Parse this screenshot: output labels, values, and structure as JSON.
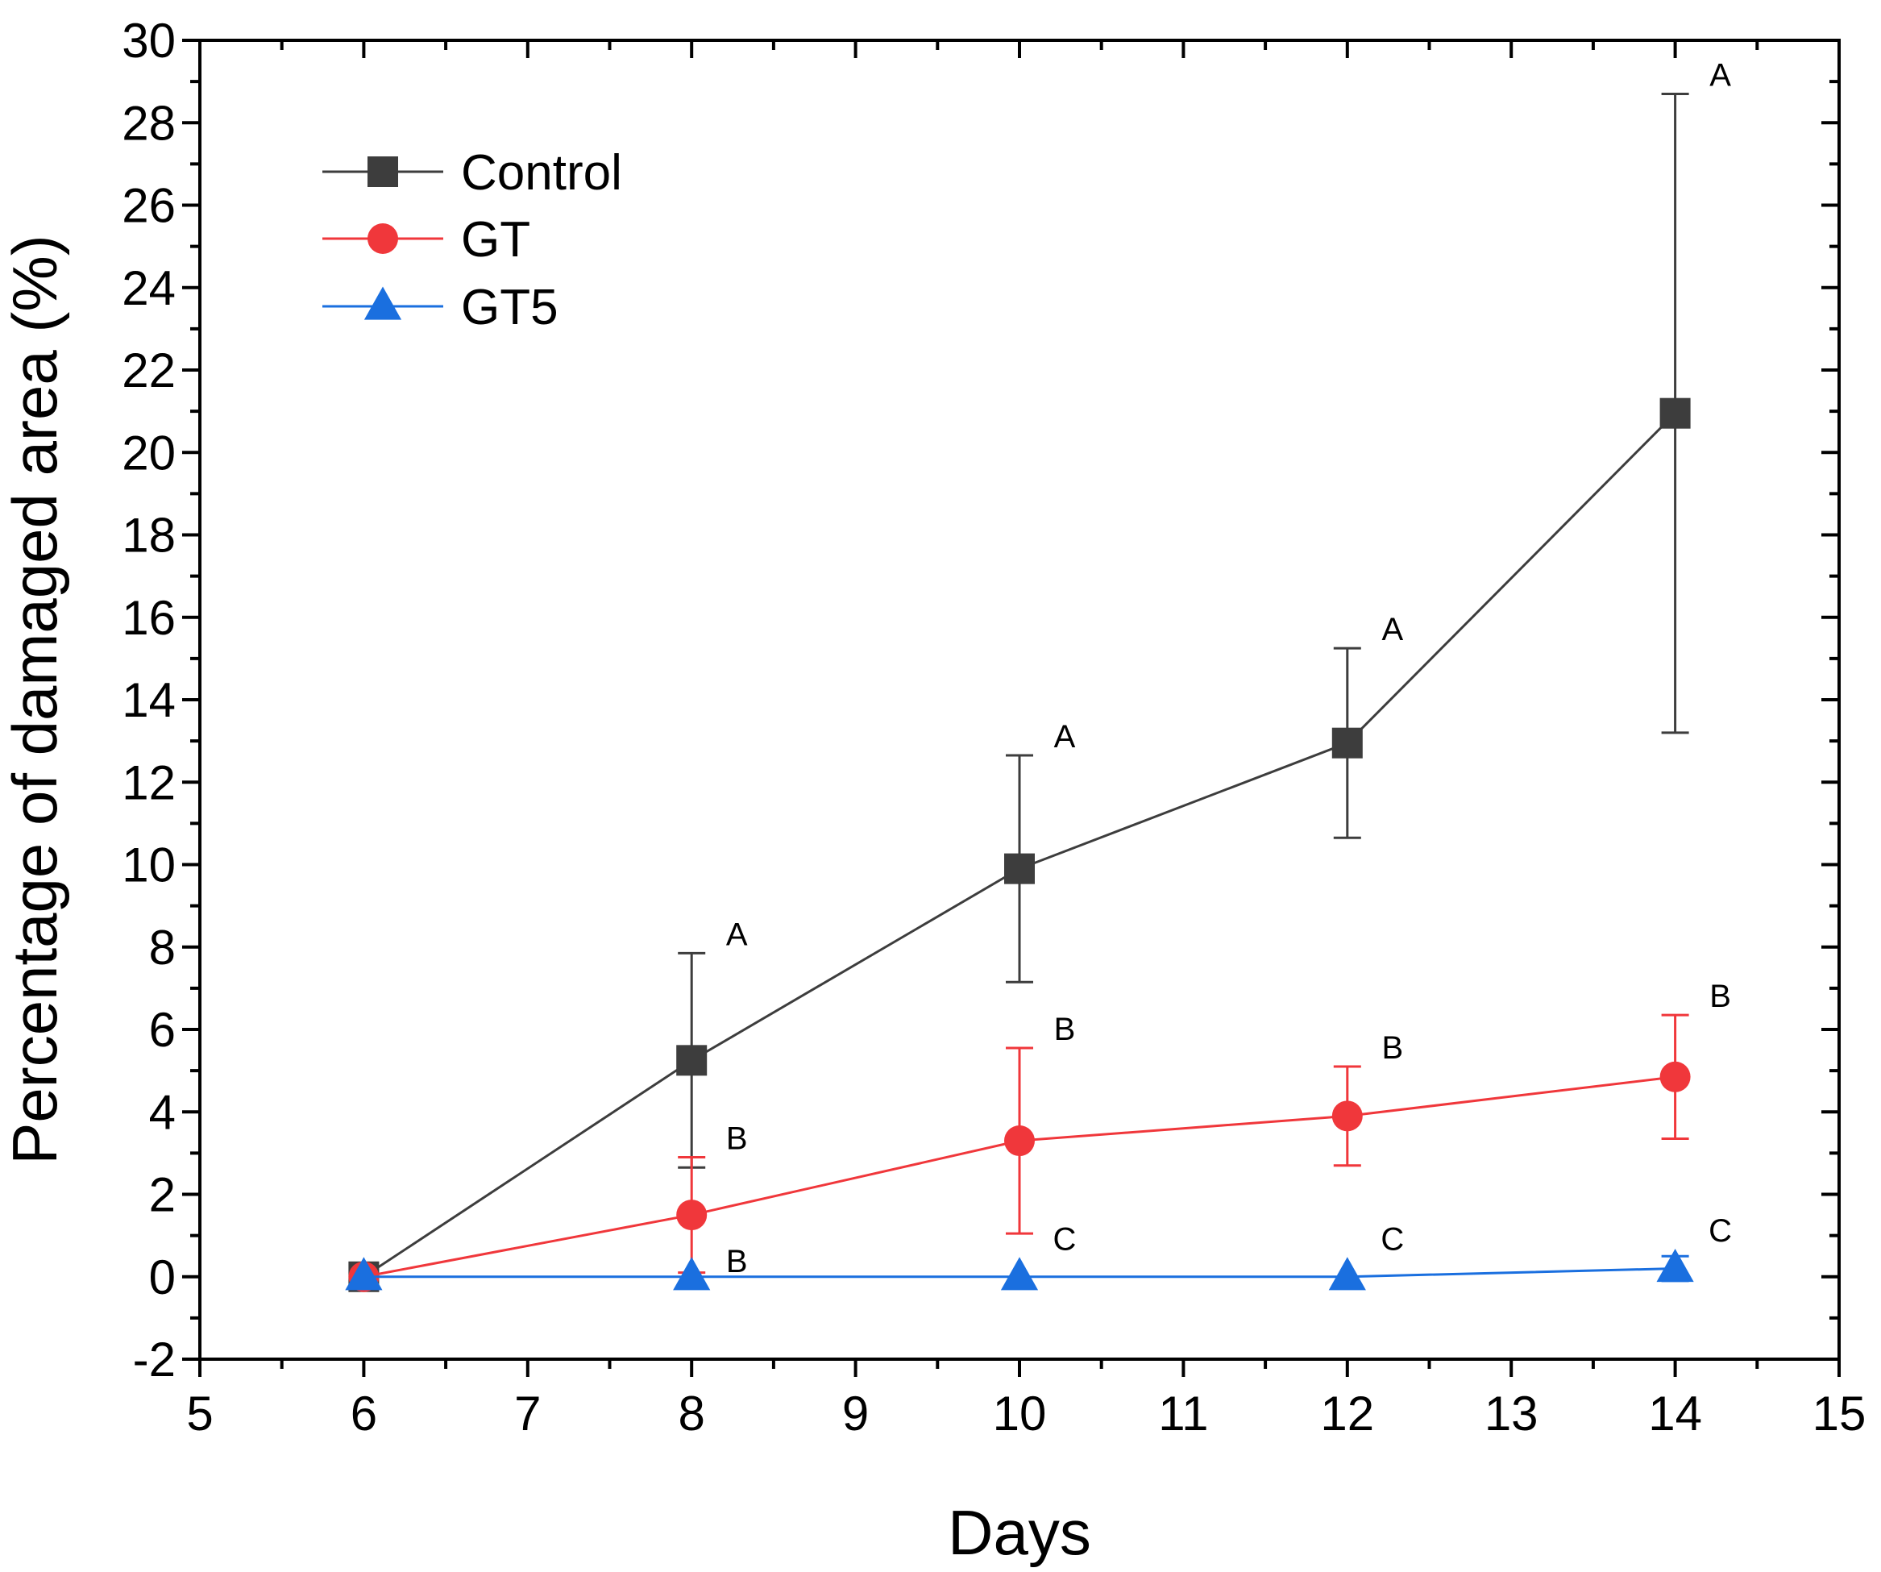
{
  "chart_data": {
    "type": "line",
    "title": "",
    "xlabel": "Days",
    "ylabel": "Percentage of damaged area (%)",
    "xlim": [
      5,
      15
    ],
    "ylim": [
      -2,
      30
    ],
    "xticks": [
      5,
      6,
      7,
      8,
      9,
      10,
      11,
      12,
      13,
      14,
      15
    ],
    "yticks": [
      -2,
      0,
      2,
      4,
      6,
      8,
      10,
      12,
      14,
      16,
      18,
      20,
      22,
      24,
      26,
      28,
      30
    ],
    "legend_position": "top-left",
    "grid": false,
    "series": [
      {
        "name": "Control",
        "color": "#3d3d3d",
        "marker": "square",
        "x": [
          6,
          8,
          10,
          12,
          14
        ],
        "y": [
          0,
          5.25,
          9.9,
          12.95,
          20.95
        ],
        "err": [
          0,
          2.6,
          2.75,
          2.3,
          7.75
        ],
        "letters": [
          "",
          "A",
          "A",
          "A",
          "A"
        ]
      },
      {
        "name": "GT",
        "color": "#f0373b",
        "marker": "circle",
        "x": [
          6,
          8,
          10,
          12,
          14
        ],
        "y": [
          0,
          1.5,
          3.3,
          3.9,
          4.85
        ],
        "err": [
          0,
          1.4,
          2.25,
          1.2,
          1.5
        ],
        "letters": [
          "",
          "B",
          "B",
          "B",
          "B"
        ]
      },
      {
        "name": "GT5",
        "color": "#1a6fdf",
        "marker": "triangle",
        "x": [
          6,
          8,
          10,
          12,
          14
        ],
        "y": [
          0,
          0,
          0,
          0,
          0.2
        ],
        "err": [
          0,
          0,
          0,
          0,
          0.3
        ],
        "letters": [
          "",
          "B",
          "C",
          "C",
          "C"
        ]
      }
    ]
  }
}
